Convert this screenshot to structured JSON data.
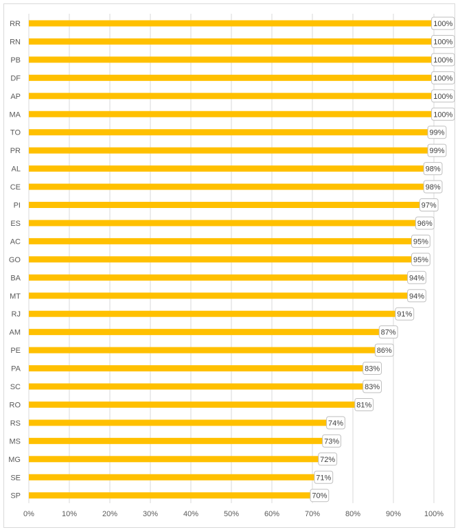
{
  "colors": {
    "bar": "#FFC000",
    "grid": "#d9d9d9",
    "label_border": "#bfbfbf",
    "text": "#595959"
  },
  "chart_data": {
    "type": "bar",
    "orientation": "horizontal",
    "title": "",
    "xlabel": "",
    "ylabel": "",
    "xlim": [
      0,
      100
    ],
    "grid": true,
    "legend": "none",
    "categories": [
      "RR",
      "RN",
      "PB",
      "DF",
      "AP",
      "MA",
      "TO",
      "PR",
      "AL",
      "CE",
      "PI",
      "ES",
      "AC",
      "GO",
      "BA",
      "MT",
      "RJ",
      "AM",
      "PE",
      "PA",
      "SC",
      "RO",
      "RS",
      "MS",
      "MG",
      "SE",
      "SP"
    ],
    "values": [
      100,
      100,
      100,
      100,
      100,
      100,
      99,
      99,
      98,
      98,
      97,
      96,
      95,
      95,
      94,
      94,
      91,
      87,
      86,
      83,
      83,
      81,
      74,
      73,
      72,
      71,
      70
    ],
    "data_labels": [
      "100%",
      "100%",
      "100%",
      "100%",
      "100%",
      "100%",
      "99%",
      "99%",
      "98%",
      "98%",
      "97%",
      "96%",
      "95%",
      "95%",
      "94%",
      "94%",
      "91%",
      "87%",
      "86%",
      "83%",
      "83%",
      "81%",
      "74%",
      "73%",
      "72%",
      "71%",
      "70%"
    ],
    "tick_labels": [
      "0%",
      "10%",
      "20%",
      "30%",
      "40%",
      "50%",
      "60%",
      "70%",
      "80%",
      "90%",
      "100%"
    ]
  }
}
